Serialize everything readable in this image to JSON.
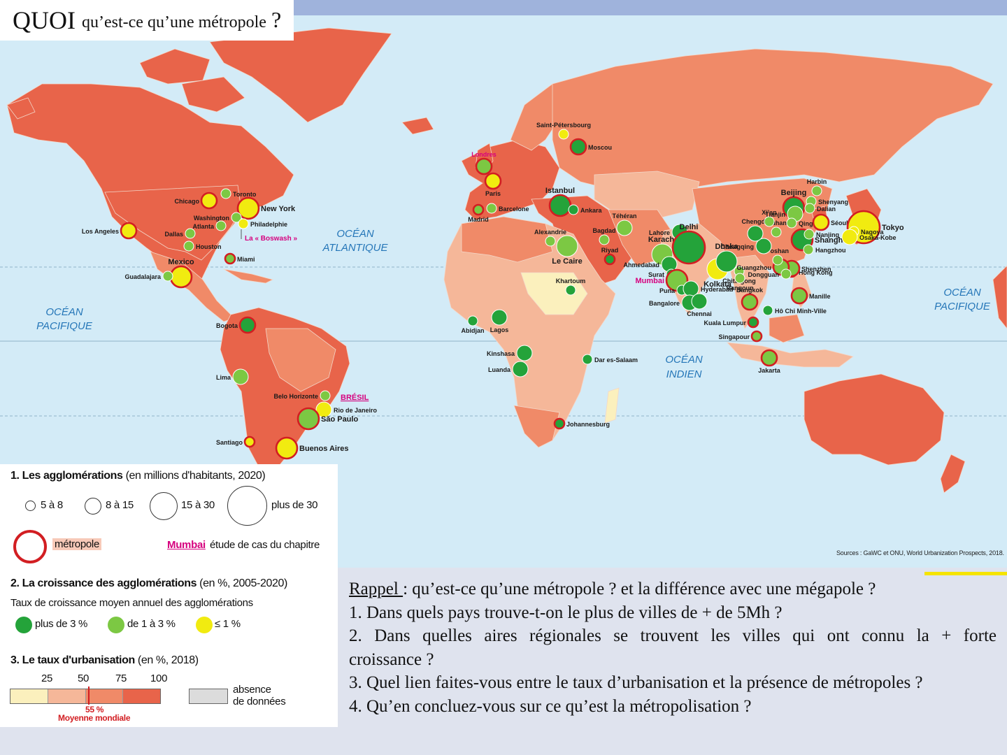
{
  "title": {
    "big": "QUOI",
    "small": "qu’est-ce qu’une métropole",
    "q": "?"
  },
  "colors": {
    "ocean": "#d3ebf7",
    "urb_high": "#e8644a",
    "urb_mid": "#f08a68",
    "urb_low": "#f5b799",
    "urb_vlow": "#fbf0bd",
    "metro_ring": "#d21e22",
    "growth_high": "#24a33a",
    "growth_mid": "#7cc843",
    "growth_low": "#f1eb10",
    "mumbai": "#d6007e",
    "no_data": "#dcdcdc"
  },
  "oceans": [
    {
      "id": "atl",
      "l1": "OCÉAN",
      "l2": "ATLANTIQUE"
    },
    {
      "id": "pac-w",
      "l1": "OCÉAN",
      "l2": "PACIFIQUE"
    },
    {
      "id": "pac-e",
      "l1": "OCÉAN",
      "l2": "PACIFIQUE"
    },
    {
      "id": "ind",
      "l1": "OCÉAN",
      "l2": "INDIEN"
    }
  ],
  "cities": [
    {
      "name": "Los Angeles",
      "growth": "low",
      "size": 2,
      "metro": true
    },
    {
      "name": "Chicago",
      "growth": "low",
      "size": 2,
      "metro": true
    },
    {
      "name": "Toronto",
      "growth": "mid",
      "size": 1,
      "metro": false
    },
    {
      "name": "New York",
      "growth": "low",
      "size": 3,
      "metro": true
    },
    {
      "name": "Washington",
      "growth": "mid",
      "size": 1,
      "metro": false
    },
    {
      "name": "Atlanta",
      "growth": "mid",
      "size": 1,
      "metro": false
    },
    {
      "name": "Philadelphie",
      "growth": "low",
      "size": 1,
      "metro": false
    },
    {
      "name": "Dallas",
      "growth": "mid",
      "size": 1,
      "metro": false
    },
    {
      "name": "Houston",
      "growth": "mid",
      "size": 1,
      "metro": false
    },
    {
      "name": "Miami",
      "growth": "mid",
      "size": 1,
      "metro": true
    },
    {
      "name": "Mexico",
      "growth": "low",
      "size": 3,
      "metro": true
    },
    {
      "name": "Guadalajara",
      "growth": "mid",
      "size": 1,
      "metro": false
    },
    {
      "name": "Bogota",
      "growth": "high",
      "size": 2,
      "metro": true
    },
    {
      "name": "Lima",
      "growth": "mid",
      "size": 2,
      "metro": false
    },
    {
      "name": "Belo Horizonte",
      "growth": "mid",
      "size": 1,
      "metro": false
    },
    {
      "name": "Rio de Janeiro",
      "growth": "low",
      "size": 2,
      "metro": false
    },
    {
      "name": "São Paulo",
      "growth": "mid",
      "size": 3,
      "metro": true
    },
    {
      "name": "Santiago",
      "growth": "low",
      "size": 1,
      "metro": true
    },
    {
      "name": "Buenos Aires",
      "growth": "low",
      "size": 3,
      "metro": true
    },
    {
      "name": "Londres",
      "growth": "mid",
      "size": 2,
      "metro": true
    },
    {
      "name": "Paris",
      "growth": "low",
      "size": 2,
      "metro": true
    },
    {
      "name": "Madrid",
      "growth": "mid",
      "size": 1,
      "metro": true
    },
    {
      "name": "Barcelone",
      "growth": "mid",
      "size": 1,
      "metro": false
    },
    {
      "name": "Saint-Pétersbourg",
      "growth": "low",
      "size": 1,
      "metro": false
    },
    {
      "name": "Moscou",
      "growth": "high",
      "size": 2,
      "metro": true
    },
    {
      "name": "Istanbul",
      "growth": "high",
      "size": 3,
      "metro": true
    },
    {
      "name": "Ankara",
      "growth": "high",
      "size": 1,
      "metro": false
    },
    {
      "name": "Alexandrie",
      "growth": "mid",
      "size": 1,
      "metro": false
    },
    {
      "name": "Le Caire",
      "growth": "mid",
      "size": 3,
      "metro": false
    },
    {
      "name": "Bagdad",
      "growth": "mid",
      "size": 1,
      "metro": false
    },
    {
      "name": "Riyad",
      "growth": "high",
      "size": 1,
      "metro": true
    },
    {
      "name": "Téhéran",
      "growth": "mid",
      "size": 2,
      "metro": false
    },
    {
      "name": "Khartoum",
      "growth": "high",
      "size": 1,
      "metro": false
    },
    {
      "name": "Abidjan",
      "growth": "high",
      "size": 1,
      "metro": false
    },
    {
      "name": "Lagos",
      "growth": "high",
      "size": 2,
      "metro": false
    },
    {
      "name": "Kinshasa",
      "growth": "high",
      "size": 2,
      "metro": false
    },
    {
      "name": "Luanda",
      "growth": "high",
      "size": 2,
      "metro": false
    },
    {
      "name": "Dar es-Salaam",
      "growth": "high",
      "size": 1,
      "metro": false
    },
    {
      "name": "Johannesburg",
      "growth": "high",
      "size": 1,
      "metro": true
    },
    {
      "name": "Karachi",
      "growth": "mid",
      "size": 3,
      "metro": false
    },
    {
      "name": "Lahore",
      "growth": "high",
      "size": 2,
      "metro": false
    },
    {
      "name": "Delhi",
      "growth": "high",
      "size": 4,
      "metro": true
    },
    {
      "name": "Ahmedabad",
      "growth": "high",
      "size": 2,
      "metro": false
    },
    {
      "name": "Surat",
      "growth": "high",
      "size": 1,
      "metro": false
    },
    {
      "name": "Mumbai",
      "growth": "mid",
      "size": 3,
      "metro": true
    },
    {
      "name": "Puna",
      "growth": "high",
      "size": 1,
      "metro": false
    },
    {
      "name": "Hyderabad",
      "growth": "high",
      "size": 2,
      "metro": false
    },
    {
      "name": "Bangalore",
      "growth": "high",
      "size": 2,
      "metro": false
    },
    {
      "name": "Chennai",
      "growth": "high",
      "size": 2,
      "metro": false
    },
    {
      "name": "Kolkata",
      "growth": "low",
      "size": 3,
      "metro": false
    },
    {
      "name": "Dhaka",
      "growth": "high",
      "size": 3,
      "metro": false
    },
    {
      "name": "Chittagong",
      "growth": "mid",
      "size": 1,
      "metro": false
    },
    {
      "name": "Rangoun",
      "growth": "mid",
      "size": 1,
      "metro": false
    },
    {
      "name": "Bangkok",
      "growth": "mid",
      "size": 2,
      "metro": true
    },
    {
      "name": "Kuala Lumpur",
      "growth": "high",
      "size": 1,
      "metro": true
    },
    {
      "name": "Singapour",
      "growth": "mid",
      "size": 1,
      "metro": true
    },
    {
      "name": "Jakarta",
      "growth": "mid",
      "size": 2,
      "metro": true
    },
    {
      "name": "Hô Chi Minh-Ville",
      "growth": "high",
      "size": 1,
      "metro": false
    },
    {
      "name": "Manille",
      "growth": "mid",
      "size": 2,
      "metro": true
    },
    {
      "name": "Hong Kong",
      "growth": "low",
      "size": 1,
      "metro": true
    },
    {
      "name": "Shenzhen",
      "growth": "mid",
      "size": 2,
      "metro": true
    },
    {
      "name": "Guangzhou",
      "growth": "mid",
      "size": 2,
      "metro": true
    },
    {
      "name": "Dongguan",
      "growth": "mid",
      "size": 1,
      "metro": false
    },
    {
      "name": "Foshan",
      "growth": "mid",
      "size": 1,
      "metro": false
    },
    {
      "name": "Chongqing",
      "growth": "high",
      "size": 2,
      "metro": false
    },
    {
      "name": "Chengdu",
      "growth": "high",
      "size": 2,
      "metro": false
    },
    {
      "name": "Wuhan",
      "growth": "mid",
      "size": 1,
      "metro": false
    },
    {
      "name": "Xi’an",
      "growth": "mid",
      "size": 1,
      "metro": false
    },
    {
      "name": "Beijing",
      "growth": "high",
      "size": 3,
      "metro": true
    },
    {
      "name": "Tianjin",
      "growth": "mid",
      "size": 2,
      "metro": false
    },
    {
      "name": "Shanghai",
      "growth": "high",
      "size": 3,
      "metro": true
    },
    {
      "name": "Nanjing",
      "growth": "mid",
      "size": 1,
      "metro": false
    },
    {
      "name": "Hangzhou",
      "growth": "mid",
      "size": 1,
      "metro": false
    },
    {
      "name": "Qingdao",
      "growth": "mid",
      "size": 1,
      "metro": false
    },
    {
      "name": "Shenyang",
      "growth": "mid",
      "size": 1,
      "metro": false
    },
    {
      "name": "Dalian",
      "growth": "mid",
      "size": 1,
      "metro": false
    },
    {
      "name": "Harbin",
      "growth": "mid",
      "size": 1,
      "metro": false
    },
    {
      "name": "Séoul",
      "growth": "low",
      "size": 2,
      "metro": true
    },
    {
      "name": "Tokyo",
      "growth": "low",
      "size": 4,
      "metro": true
    },
    {
      "name": "Nagoya",
      "growth": "low",
      "size": 1,
      "metro": false
    },
    {
      "name": "Osaka-Kobe",
      "growth": "low",
      "size": 2,
      "metro": false
    }
  ],
  "annotations": {
    "boswash": "La « Boswash »",
    "bresil": "BRÉSIL"
  },
  "sources": "Sources : GaWC et ONU, World Urbanization Prospects, 2018.",
  "legend": {
    "s1": {
      "num": "1.",
      "title": "Les agglomérations",
      "sub": "(en millions d'habitants, 2020)",
      "sizes": [
        "5 à 8",
        "8 à 15",
        "15 à 30",
        "plus de 30"
      ],
      "metro": "métropole",
      "mumbai": "Mumbai",
      "case": "étude de cas du chapitre"
    },
    "s2": {
      "num": "2.",
      "title": "La croissance des agglomérations",
      "sub": "(en %, 2005-2020)",
      "subtitle": "Taux de croissance moyen annuel des agglomérations",
      "items": [
        "plus de 3 %",
        "de 1 à 3 %",
        "≤ 1 %"
      ]
    },
    "s3": {
      "num": "3.",
      "title": "Le taux d'urbanisation",
      "sub": "(en %, 2018)",
      "ticks": [
        "25",
        "50",
        "75",
        "100"
      ],
      "avg_pct": "55 %",
      "avg_label": "Moyenne mondiale",
      "nodata1": "absence",
      "nodata2": "de données"
    }
  },
  "questions": {
    "rappel": "Rappel ",
    "rappel_rest": ": qu’est-ce qu’une métropole ? et la différence avec une mégapole ?",
    "q1": "1. Dans quels pays trouve-t-on le plus de villes de + de 5Mh ?",
    "q2a": "2. Dans quelles aires régionales se trouvent les villes qui ont connu la + forte",
    "q2b": "croissance ?",
    "q3": "3. Quel lien faites-vous entre le taux d’urbanisation et la présence de métropoles ?",
    "q4": "4. Qu’en concluez-vous sur ce qu’est la métropolisation ?"
  }
}
